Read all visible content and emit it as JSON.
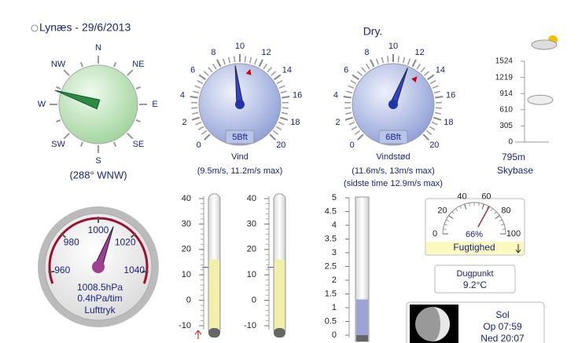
{
  "header": {
    "title": "Lynæs - 29/6/2013",
    "status": "Dry."
  },
  "compass": {
    "labels": [
      "N",
      "NE",
      "E",
      "SE",
      "S",
      "SW",
      "W",
      "NW"
    ],
    "direction": 288,
    "caption": "(288° WNW)"
  },
  "wind": {
    "ticks": [
      0,
      2,
      4,
      6,
      8,
      10,
      12,
      14,
      16,
      18,
      20
    ],
    "value": 9.5,
    "max": 11.2,
    "beaufort": "5Bft",
    "label": "Vind",
    "caption": "(9.5m/s, 11.2m/s max)"
  },
  "gust": {
    "ticks": [
      0,
      2,
      4,
      6,
      8,
      10,
      12,
      14,
      16,
      18,
      20
    ],
    "value": 11.6,
    "max": 13,
    "beaufort": "6Bft",
    "label": "Vindstød",
    "caption": "(11.6m/s, 13m/s max)",
    "caption2": "(sidste time 12.9m/s max)"
  },
  "cloudbase": {
    "ticks": [
      0,
      305,
      610,
      914,
      1219,
      1524
    ],
    "value": 795,
    "value_label": "795m",
    "label": "Skybase"
  },
  "pressure": {
    "ticks": [
      960,
      980,
      1000,
      1020,
      1040
    ],
    "value": 1008.5,
    "value_label": "1008.5hPa",
    "trend": "0.4hPa/tim",
    "label": "Lufttryk"
  },
  "thermometers": [
    {
      "ticks": [
        -10,
        0,
        10,
        20,
        30,
        40
      ],
      "value": 16,
      "min": 13
    },
    {
      "ticks": [
        -10,
        0,
        10,
        20,
        30,
        40
      ],
      "value": 16,
      "min": 13
    }
  ],
  "rain": {
    "ticks": [
      0,
      0.5,
      1,
      1.5,
      2,
      2.5,
      3,
      3.5,
      4,
      4.5,
      5
    ],
    "value": 1.3
  },
  "humidity": {
    "ticks": [
      0,
      20,
      40,
      60,
      80,
      100
    ],
    "value": 66,
    "value_label": "66%",
    "label": "Fugtighed"
  },
  "dewpoint": {
    "label": "Dugpunkt",
    "value_label": "9.2°C"
  },
  "sun": {
    "title": "Sol",
    "rise": "Op 07:59",
    "set": "Ned 20:07"
  }
}
